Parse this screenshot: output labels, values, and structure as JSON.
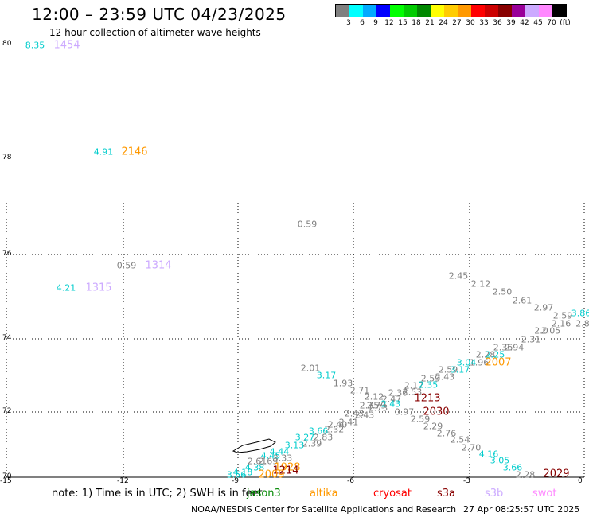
{
  "header": {
    "title": "12:00 – 23:59 UTC 04/23/2025",
    "subtitle": "12 hour collection of altimeter wave heights"
  },
  "legend": {
    "colors": [
      "#808080",
      "#00ffff",
      "#00aaff",
      "#0000ff",
      "#00ff00",
      "#00cc00",
      "#008800",
      "#ffff00",
      "#ffcc00",
      "#ff9900",
      "#ff0000",
      "#cc0000",
      "#880000",
      "#990099",
      "#ccaaff",
      "#ff88ff",
      "#000000"
    ],
    "labels": [
      "3",
      "6",
      "9",
      "12",
      "15",
      "18",
      "21",
      "24",
      "27",
      "30",
      "33",
      "36",
      "39",
      "42",
      "45",
      "70",
      "(ft)"
    ]
  },
  "grid": {
    "lat_labels": [
      "80",
      "78",
      "76",
      "74",
      "72",
      "70"
    ],
    "lon_labels": [
      "-15",
      "-12",
      "-9",
      "-6",
      "-3",
      "0"
    ]
  },
  "points": [
    {
      "t": "8.35",
      "c": "#00cccc"
    },
    {
      "t": "1454",
      "c": "#ccaaff",
      "time": true
    },
    {
      "t": "4.91",
      "c": "#00cccc"
    },
    {
      "t": "2146",
      "c": "#ff9900",
      "time": true
    },
    {
      "t": "0.59",
      "c": "#808080"
    },
    {
      "t": "0.59",
      "c": "#808080"
    },
    {
      "t": "1314",
      "c": "#ccaaff",
      "time": true
    },
    {
      "t": "4.21",
      "c": "#00cccc"
    },
    {
      "t": "1315",
      "c": "#ccaaff",
      "time": true
    },
    {
      "t": "2.45",
      "c": "#808080"
    },
    {
      "t": "2.12",
      "c": "#808080"
    },
    {
      "t": "2.50",
      "c": "#808080"
    },
    {
      "t": "2.61",
      "c": "#808080"
    },
    {
      "t": "2.97",
      "c": "#808080"
    },
    {
      "t": "2.59",
      "c": "#808080"
    },
    {
      "t": "3.86",
      "c": "#00cccc"
    },
    {
      "t": "2.16",
      "c": "#808080"
    },
    {
      "t": "2.8",
      "c": "#808080"
    },
    {
      "t": "2.05",
      "c": "#808080"
    },
    {
      "t": "2.0",
      "c": "#808080"
    },
    {
      "t": "2.31",
      "c": "#808080"
    },
    {
      "t": "2.94",
      "c": "#808080"
    },
    {
      "t": "2.36",
      "c": "#808080"
    },
    {
      "t": "2.28",
      "c": "#808080"
    },
    {
      "t": "2.25",
      "c": "#00cccc"
    },
    {
      "t": "1.96",
      "c": "#808080"
    },
    {
      "t": "3.04",
      "c": "#00cccc"
    },
    {
      "t": "2007",
      "c": "#ff9900",
      "time": true
    },
    {
      "t": "2.01",
      "c": "#808080"
    },
    {
      "t": "3.17",
      "c": "#00cccc"
    },
    {
      "t": "2.59",
      "c": "#808080"
    },
    {
      "t": "3.17",
      "c": "#00cccc"
    },
    {
      "t": "2.43",
      "c": "#808080"
    },
    {
      "t": "2.59",
      "c": "#808080"
    },
    {
      "t": "1.93",
      "c": "#808080"
    },
    {
      "t": "2.17",
      "c": "#808080"
    },
    {
      "t": "2.35",
      "c": "#00cccc"
    },
    {
      "t": "2.71",
      "c": "#808080"
    },
    {
      "t": "2.36",
      "c": "#808080"
    },
    {
      "t": "2.53",
      "c": "#808080"
    },
    {
      "t": "1213",
      "c": "#880000",
      "time": true
    },
    {
      "t": "2.12",
      "c": "#808080"
    },
    {
      "t": "2.47",
      "c": "#808080"
    },
    {
      "t": "2.79",
      "c": "#808080"
    },
    {
      "t": "2.75",
      "c": "#808080"
    },
    {
      "t": "2.43",
      "c": "#00cccc"
    },
    {
      "t": "0.97",
      "c": "#808080"
    },
    {
      "t": "2030",
      "c": "#880000",
      "time": true
    },
    {
      "t": "2.73",
      "c": "#808080"
    },
    {
      "t": "2.43",
      "c": "#808080"
    },
    {
      "t": "2.43",
      "c": "#808080"
    },
    {
      "t": "2.59",
      "c": "#808080"
    },
    {
      "t": "2.29",
      "c": "#808080"
    },
    {
      "t": "2.41",
      "c": "#808080"
    },
    {
      "t": "2.40",
      "c": "#808080"
    },
    {
      "t": "2.32",
      "c": "#808080"
    },
    {
      "t": "3.66",
      "c": "#00cccc"
    },
    {
      "t": "2.83",
      "c": "#808080"
    },
    {
      "t": "2.76",
      "c": "#808080"
    },
    {
      "t": "3.27",
      "c": "#00cccc"
    },
    {
      "t": "2.39",
      "c": "#808080"
    },
    {
      "t": "2.54",
      "c": "#808080"
    },
    {
      "t": "3.13",
      "c": "#00cccc"
    },
    {
      "t": "2.70",
      "c": "#808080"
    },
    {
      "t": "4.44",
      "c": "#00cccc"
    },
    {
      "t": "3.33",
      "c": "#808080"
    },
    {
      "t": "4.16",
      "c": "#00cccc"
    },
    {
      "t": "4.45",
      "c": "#00cccc"
    },
    {
      "t": "2.69",
      "c": "#808080"
    },
    {
      "t": "3.05",
      "c": "#00cccc"
    },
    {
      "t": "2.61",
      "c": "#808080"
    },
    {
      "t": "3.66",
      "c": "#00cccc"
    },
    {
      "t": "2.28",
      "c": "#808080"
    },
    {
      "t": "2029",
      "c": "#880000",
      "time": true
    },
    {
      "t": "4.38",
      "c": "#00cccc"
    },
    {
      "t": "1928",
      "c": "#ff9900",
      "time": true
    },
    {
      "t": "4.18",
      "c": "#00cccc"
    },
    {
      "t": "1214",
      "c": "#880000",
      "time": true
    },
    {
      "t": "3.56",
      "c": "#00cccc"
    },
    {
      "t": "2009",
      "c": "#ff9900",
      "time": true
    }
  ],
  "note": "note: 1) Time is in UTC; 2) SWH is in feet",
  "satellites": [
    {
      "name": "jason3",
      "color": "#008800"
    },
    {
      "name": "altika",
      "color": "#ff9900"
    },
    {
      "name": "cryosat",
      "color": "#ff0000"
    },
    {
      "name": "s3a",
      "color": "#880000"
    },
    {
      "name": "s3b",
      "color": "#ccaaff"
    },
    {
      "name": "swot",
      "color": "#ff88ff"
    }
  ],
  "footer": {
    "credit": "NOAA/NESDIS Center for Satellite Applications and Research",
    "timestamp": "27 Apr 08:25:57 UTC 2025"
  }
}
